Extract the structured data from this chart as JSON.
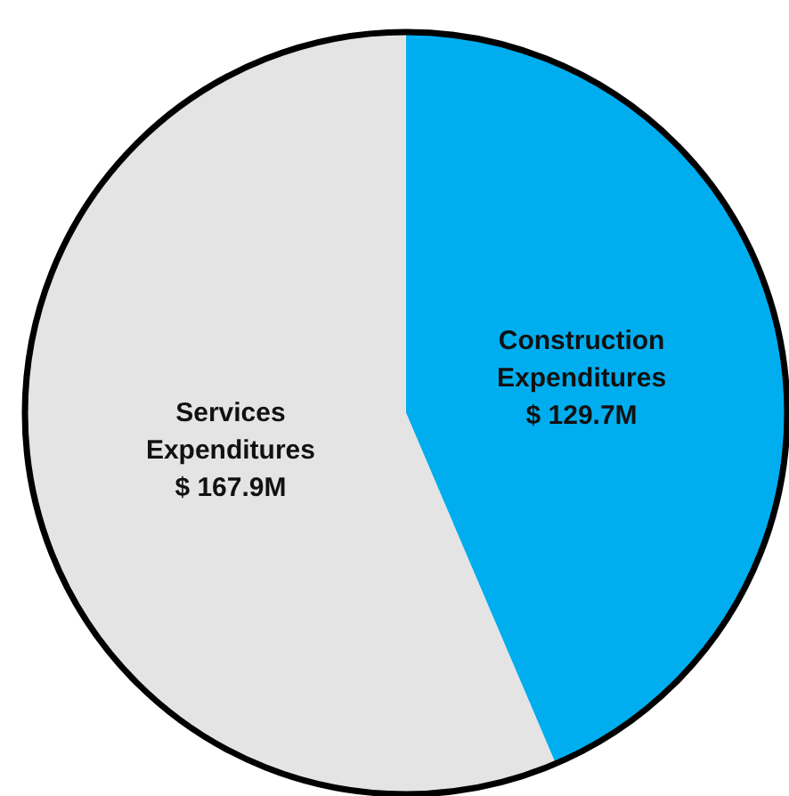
{
  "chart_data": {
    "type": "pie",
    "categories": [
      "Construction Expenditures",
      "Services Expenditures"
    ],
    "values": [
      129.7,
      167.9
    ],
    "colors": [
      "#00aeef",
      "#e4e4e4"
    ],
    "value_labels": [
      "$ 129.7M",
      "$ 167.9M"
    ]
  }
}
